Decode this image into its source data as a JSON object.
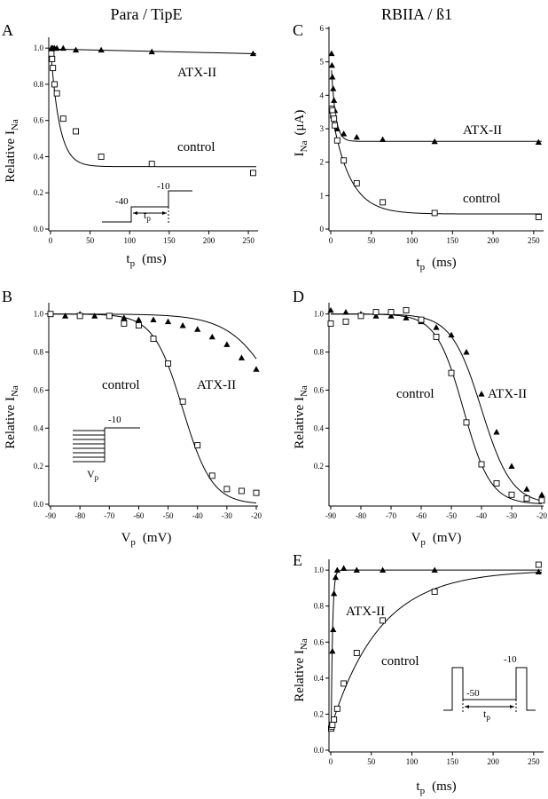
{
  "header": {
    "left_title": "Para / TipE",
    "right_title": "RBIIA / ß1"
  },
  "panels": {
    "A": {
      "letter": "A",
      "ylabel_main": "Relative I",
      "ylabel_sub": "Na",
      "xlabel_main": "t",
      "xlabel_sub": "p",
      "xlabel_unit": "(ms)",
      "ann1": "ATX-II",
      "ann2": "control",
      "protocol": {
        "v1": "-40",
        "v2": "-10",
        "t": "t",
        "tsub": "p"
      }
    },
    "B": {
      "letter": "B",
      "ylabel_main": "Relative I",
      "ylabel_sub": "Na",
      "xlabel_main": "V",
      "xlabel_sub": "p",
      "xlabel_unit": "(mV)",
      "ann1": "control",
      "ann2": "ATX-II",
      "protocol": {
        "v2": "-10",
        "v": "V",
        "vsub": "p"
      }
    },
    "C": {
      "letter": "C",
      "ylabel_main": "I",
      "ylabel_sub": "Na",
      "ylabel_unit": "(μA)",
      "xlabel_main": "t",
      "xlabel_sub": "p",
      "xlabel_unit": "(ms)",
      "ann1": "ATX-II",
      "ann2": "control"
    },
    "D": {
      "letter": "D",
      "ylabel_main": "Relative I",
      "ylabel_sub": "Na",
      "xlabel_main": "V",
      "xlabel_sub": "p",
      "xlabel_unit": "(mV)",
      "ann1": "control",
      "ann2": "ATX-II"
    },
    "E": {
      "letter": "E",
      "ylabel_main": "Relative I",
      "ylabel_sub": "Na",
      "xlabel_main": "t",
      "xlabel_sub": "p",
      "xlabel_unit": "(ms)",
      "ann1": "ATX-II",
      "ann2": "control",
      "protocol": {
        "v1": "-50",
        "v2": "-10",
        "t": "t",
        "tsub": "p"
      }
    }
  },
  "chart_data": [
    {
      "id": "A",
      "type": "scatter",
      "xlim": [
        0,
        260
      ],
      "ylim": [
        0,
        1.05
      ],
      "xticks": [
        0,
        50,
        100,
        150,
        200,
        250
      ],
      "yticks": [
        0.0,
        0.2,
        0.4,
        0.6,
        0.8,
        1.0
      ],
      "series": [
        {
          "name": "ATX-II",
          "marker": "triangle",
          "x": [
            1,
            2,
            3,
            5,
            8,
            16,
            32,
            64,
            128,
            256
          ],
          "y": [
            1.0,
            1.0,
            1.0,
            1.0,
            1.0,
            1.0,
            0.99,
            0.99,
            0.98,
            0.97
          ],
          "fit": {
            "form": "exp_decay",
            "A": 0.0,
            "tau": 10,
            "C": 0.995,
            "slope": -0.0001
          }
        },
        {
          "name": "control",
          "marker": "open-square",
          "x": [
            1,
            2,
            3,
            5,
            8,
            16,
            32,
            64,
            128,
            256
          ],
          "y": [
            0.97,
            0.94,
            0.89,
            0.8,
            0.75,
            0.61,
            0.54,
            0.4,
            0.36,
            0.31
          ],
          "fit": {
            "form": "exp_decay",
            "A": 0.66,
            "tau": 11,
            "C": 0.345
          }
        }
      ]
    },
    {
      "id": "B",
      "type": "scatter",
      "xlim": [
        -90,
        -20
      ],
      "ylim": [
        0,
        1.05
      ],
      "xticks": [
        -90,
        -80,
        -70,
        -60,
        -50,
        -40,
        -30,
        -20
      ],
      "yticks": [
        0.0,
        0.2,
        0.4,
        0.6,
        0.8,
        1.0
      ],
      "series": [
        {
          "name": "ATX-II",
          "marker": "triangle",
          "x": [
            -90,
            -85,
            -80,
            -75,
            -70,
            -65,
            -60,
            -55,
            -50,
            -45,
            -40,
            -35,
            -30,
            -25,
            -20
          ],
          "y": [
            1.0,
            0.99,
            1.0,
            0.99,
            0.99,
            0.98,
            0.97,
            0.97,
            0.96,
            0.94,
            0.92,
            0.88,
            0.84,
            0.77,
            0.71
          ],
          "fit": {
            "form": "boltzmann",
            "v50": -10,
            "k": 8.5
          }
        },
        {
          "name": "control",
          "marker": "open-square",
          "x": [
            -90,
            -80,
            -70,
            -65,
            -60,
            -55,
            -50,
            -45,
            -40,
            -35,
            -30,
            -25,
            -20
          ],
          "y": [
            1.0,
            0.99,
            0.99,
            0.95,
            0.94,
            0.87,
            0.74,
            0.54,
            0.31,
            0.15,
            0.08,
            0.07,
            0.06
          ],
          "fit": {
            "form": "boltzmann",
            "v50": -45,
            "k": 5
          }
        }
      ]
    },
    {
      "id": "C",
      "type": "scatter",
      "xlim": [
        0,
        260
      ],
      "ylim": [
        0,
        6
      ],
      "xticks": [
        0,
        50,
        100,
        150,
        200,
        250
      ],
      "yticks": [
        0,
        1,
        2,
        3,
        4,
        5,
        6
      ],
      "series": [
        {
          "name": "ATX-II",
          "marker": "triangle",
          "x": [
            1,
            1.5,
            2,
            3,
            4,
            5,
            8,
            16,
            32,
            64,
            128,
            256
          ],
          "y": [
            5.25,
            4.9,
            4.55,
            4.2,
            3.85,
            3.55,
            3.0,
            2.85,
            2.75,
            2.68,
            2.62,
            2.6
          ],
          "fit": {
            "form": "exp_decay",
            "A": 2.6,
            "tau": 5,
            "C": 2.62
          }
        },
        {
          "name": "control",
          "marker": "open-square",
          "x": [
            1,
            2,
            3,
            4,
            5,
            8,
            16,
            32,
            64,
            128,
            256
          ],
          "y": [
            3.6,
            3.55,
            3.4,
            3.3,
            3.1,
            2.65,
            2.05,
            1.37,
            0.8,
            0.48,
            0.36
          ],
          "fit": {
            "form": "exp_decay",
            "A": 3.2,
            "tau": 22,
            "C": 0.45
          }
        }
      ]
    },
    {
      "id": "D",
      "type": "scatter",
      "xlim": [
        -90,
        -20
      ],
      "ylim": [
        0,
        1.05
      ],
      "xticks": [
        -90,
        -80,
        -70,
        -60,
        -50,
        -40,
        -30,
        -20
      ],
      "yticks": [
        0.2,
        0.4,
        0.6,
        0.8,
        1.0
      ],
      "series": [
        {
          "name": "ATX-II",
          "marker": "triangle",
          "x": [
            -90,
            -85,
            -80,
            -75,
            -70,
            -65,
            -60,
            -55,
            -50,
            -45,
            -40,
            -35,
            -30,
            -25,
            -20
          ],
          "y": [
            1.02,
            1.01,
            1.0,
            0.99,
            0.99,
            0.98,
            0.96,
            0.93,
            0.89,
            0.8,
            0.58,
            0.38,
            0.2,
            0.08,
            0.05
          ],
          "fit": {
            "form": "boltzmann",
            "v50": -40,
            "k": 5
          }
        },
        {
          "name": "control",
          "marker": "open-square",
          "x": [
            -90,
            -85,
            -80,
            -75,
            -70,
            -65,
            -60,
            -55,
            -50,
            -45,
            -40,
            -35,
            -30,
            -25,
            -20
          ],
          "y": [
            0.95,
            0.96,
            0.99,
            1.01,
            1.01,
            1.02,
            0.97,
            0.88,
            0.69,
            0.43,
            0.21,
            0.11,
            0.05,
            0.03,
            0.02
          ],
          "fit": {
            "form": "boltzmann",
            "v50": -46,
            "k": 4.5
          }
        }
      ]
    },
    {
      "id": "E",
      "type": "scatter",
      "xlim": [
        0,
        260
      ],
      "ylim": [
        0,
        1.05
      ],
      "xticks": [
        0,
        50,
        100,
        150,
        200,
        250
      ],
      "yticks": [
        0.0,
        0.2,
        0.4,
        0.6,
        0.8,
        1.0
      ],
      "series": [
        {
          "name": "ATX-II",
          "marker": "triangle",
          "x": [
            0.5,
            1,
            2,
            3,
            4,
            6,
            8,
            16,
            32,
            64,
            128,
            256
          ],
          "y": [
            0.12,
            0.13,
            0.55,
            0.67,
            0.87,
            0.96,
            1.0,
            1.01,
            1.0,
            1.0,
            1.0,
            0.99
          ],
          "fit": {
            "form": "exp_recovery",
            "A": 1.0,
            "tau": 1.8,
            "t0": 0.5,
            "y0": 0.12
          }
        },
        {
          "name": "control",
          "marker": "open-square",
          "x": [
            0.5,
            1,
            2,
            4,
            8,
            16,
            32,
            64,
            128,
            256
          ],
          "y": [
            0.12,
            0.13,
            0.14,
            0.17,
            0.23,
            0.37,
            0.54,
            0.72,
            0.88,
            1.03
          ],
          "fit": {
            "form": "exp_recovery",
            "A": 1.0,
            "tau": 60,
            "t0": 0,
            "y0": 0.12
          }
        }
      ]
    }
  ]
}
